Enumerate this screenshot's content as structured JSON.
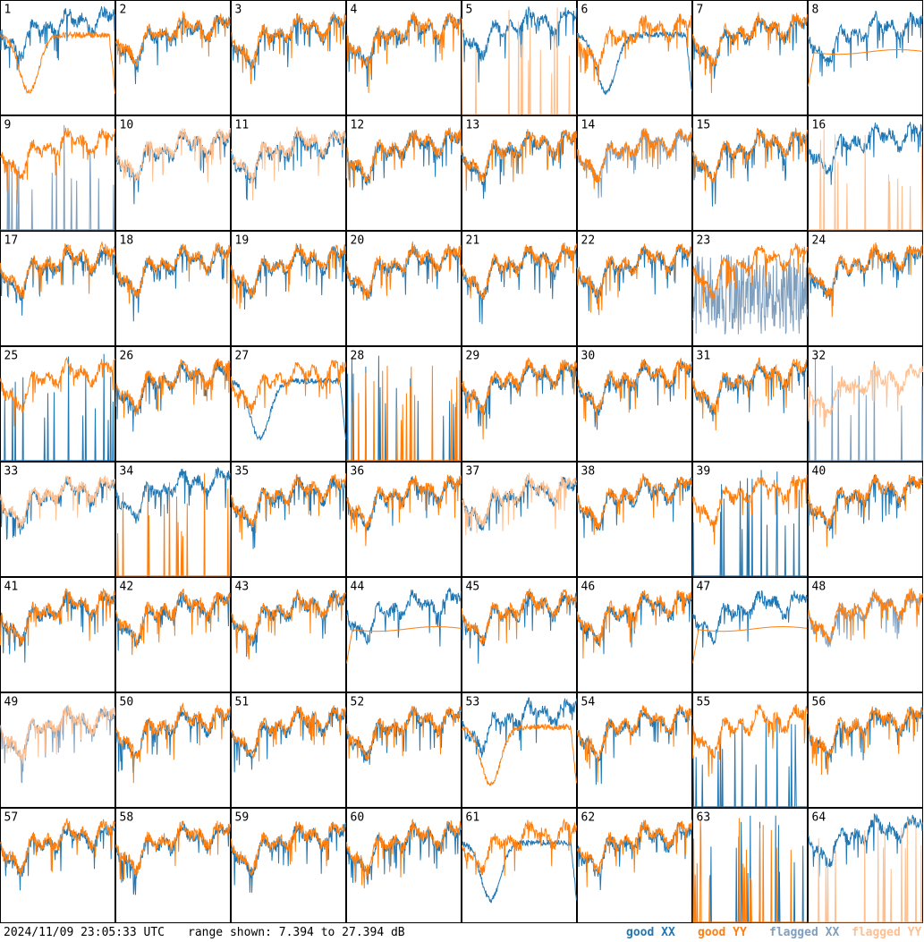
{
  "footer": {
    "timestamp": "2024/11/09 23:05:33 UTC",
    "range_text": "range shown: 7.394 to 27.394 dB",
    "legend": {
      "good_xx": "good XX",
      "good_yy": "good YY",
      "flagged_xx": "flagged XX",
      "flagged_yy": "flagged YY"
    }
  },
  "colors": {
    "good_xx": "#1f77b4",
    "good_yy": "#ff7f0e",
    "flagged_xx": "#7f9fbf",
    "flagged_yy": "#ffbf8f"
  },
  "chart_data": {
    "type": "line",
    "grid": "8x8 small multiples",
    "ylim": [
      7.394,
      27.394
    ],
    "panels": [
      {
        "label": "1",
        "xx": "good",
        "yy": "good",
        "style": "yy-deep-dip"
      },
      {
        "label": "2",
        "xx": "good",
        "yy": "good",
        "style": "normal"
      },
      {
        "label": "3",
        "xx": "good",
        "yy": "good",
        "style": "normal"
      },
      {
        "label": "4",
        "xx": "good",
        "yy": "good",
        "style": "normal"
      },
      {
        "label": "5",
        "xx": "good",
        "yy": "flagged",
        "style": "yy-spikes"
      },
      {
        "label": "6",
        "xx": "good",
        "yy": "good",
        "style": "xx-dip"
      },
      {
        "label": "7",
        "xx": "good",
        "yy": "good",
        "style": "normal"
      },
      {
        "label": "8",
        "xx": "good",
        "yy": "good",
        "style": "yy-smooth"
      },
      {
        "label": "9",
        "xx": "flagged",
        "yy": "good",
        "style": "xx-spikes"
      },
      {
        "label": "10",
        "xx": "good",
        "yy": "flagged",
        "style": "normal"
      },
      {
        "label": "11",
        "xx": "good",
        "yy": "flagged",
        "style": "normal"
      },
      {
        "label": "12",
        "xx": "good",
        "yy": "good",
        "style": "normal"
      },
      {
        "label": "13",
        "xx": "good",
        "yy": "good",
        "style": "normal"
      },
      {
        "label": "14",
        "xx": "flagged",
        "yy": "good",
        "style": "normal"
      },
      {
        "label": "15",
        "xx": "good",
        "yy": "good",
        "style": "normal"
      },
      {
        "label": "16",
        "xx": "good",
        "yy": "flagged",
        "style": "yy-spikes"
      },
      {
        "label": "17",
        "xx": "good",
        "yy": "good",
        "style": "normal"
      },
      {
        "label": "18",
        "xx": "good",
        "yy": "good",
        "style": "normal"
      },
      {
        "label": "19",
        "xx": "good",
        "yy": "good",
        "style": "normal"
      },
      {
        "label": "20",
        "xx": "good",
        "yy": "good",
        "style": "normal"
      },
      {
        "label": "21",
        "xx": "good",
        "yy": "good",
        "style": "normal"
      },
      {
        "label": "22",
        "xx": "good",
        "yy": "good",
        "style": "normal"
      },
      {
        "label": "23",
        "xx": "flagged",
        "yy": "good",
        "style": "xx-noisy"
      },
      {
        "label": "24",
        "xx": "good",
        "yy": "good",
        "style": "normal"
      },
      {
        "label": "25",
        "xx": "good",
        "yy": "good",
        "style": "xx-spikes"
      },
      {
        "label": "26",
        "xx": "good",
        "yy": "good",
        "style": "normal"
      },
      {
        "label": "27",
        "xx": "good",
        "yy": "good",
        "style": "xx-deep-dip"
      },
      {
        "label": "28",
        "xx": "good",
        "yy": "good",
        "style": "both-spikes"
      },
      {
        "label": "29",
        "xx": "good",
        "yy": "good",
        "style": "normal"
      },
      {
        "label": "30",
        "xx": "good",
        "yy": "good",
        "style": "normal"
      },
      {
        "label": "31",
        "xx": "good",
        "yy": "good",
        "style": "normal"
      },
      {
        "label": "32",
        "xx": "flagged",
        "yy": "flagged",
        "style": "flagged-dip"
      },
      {
        "label": "33",
        "xx": "good",
        "yy": "flagged",
        "style": "normal"
      },
      {
        "label": "34",
        "xx": "good",
        "yy": "good",
        "style": "yy-spikes"
      },
      {
        "label": "35",
        "xx": "good",
        "yy": "good",
        "style": "normal"
      },
      {
        "label": "36",
        "xx": "good",
        "yy": "good",
        "style": "normal"
      },
      {
        "label": "37",
        "xx": "good",
        "yy": "flagged",
        "style": "normal"
      },
      {
        "label": "38",
        "xx": "good",
        "yy": "good",
        "style": "normal"
      },
      {
        "label": "39",
        "xx": "good",
        "yy": "good",
        "style": "xx-spikes"
      },
      {
        "label": "40",
        "xx": "good",
        "yy": "good",
        "style": "normal"
      },
      {
        "label": "41",
        "xx": "good",
        "yy": "good",
        "style": "normal"
      },
      {
        "label": "42",
        "xx": "good",
        "yy": "good",
        "style": "normal"
      },
      {
        "label": "43",
        "xx": "good",
        "yy": "good",
        "style": "normal"
      },
      {
        "label": "44",
        "xx": "good",
        "yy": "good",
        "style": "yy-smooth"
      },
      {
        "label": "45",
        "xx": "good",
        "yy": "good",
        "style": "normal"
      },
      {
        "label": "46",
        "xx": "good",
        "yy": "good",
        "style": "normal"
      },
      {
        "label": "47",
        "xx": "good",
        "yy": "good",
        "style": "yy-smooth"
      },
      {
        "label": "48",
        "xx": "flagged",
        "yy": "good",
        "style": "normal"
      },
      {
        "label": "49",
        "xx": "flagged",
        "yy": "flagged",
        "style": "normal"
      },
      {
        "label": "50",
        "xx": "good",
        "yy": "good",
        "style": "normal"
      },
      {
        "label": "51",
        "xx": "good",
        "yy": "good",
        "style": "normal"
      },
      {
        "label": "52",
        "xx": "good",
        "yy": "good",
        "style": "normal"
      },
      {
        "label": "53",
        "xx": "good",
        "yy": "good",
        "style": "yy-deep-dip"
      },
      {
        "label": "54",
        "xx": "good",
        "yy": "good",
        "style": "normal"
      },
      {
        "label": "55",
        "xx": "good",
        "yy": "good",
        "style": "xx-spikes"
      },
      {
        "label": "56",
        "xx": "good",
        "yy": "good",
        "style": "normal"
      },
      {
        "label": "57",
        "xx": "good",
        "yy": "good",
        "style": "normal"
      },
      {
        "label": "58",
        "xx": "good",
        "yy": "good",
        "style": "normal"
      },
      {
        "label": "59",
        "xx": "good",
        "yy": "good",
        "style": "normal"
      },
      {
        "label": "60",
        "xx": "good",
        "yy": "good",
        "style": "normal"
      },
      {
        "label": "61",
        "xx": "good",
        "yy": "good",
        "style": "xx-deep-dip"
      },
      {
        "label": "62",
        "xx": "good",
        "yy": "good",
        "style": "normal"
      },
      {
        "label": "63",
        "xx": "good",
        "yy": "good",
        "style": "both-spikes"
      },
      {
        "label": "64",
        "xx": "good",
        "yy": "flagged",
        "style": "yy-spikes"
      }
    ]
  }
}
